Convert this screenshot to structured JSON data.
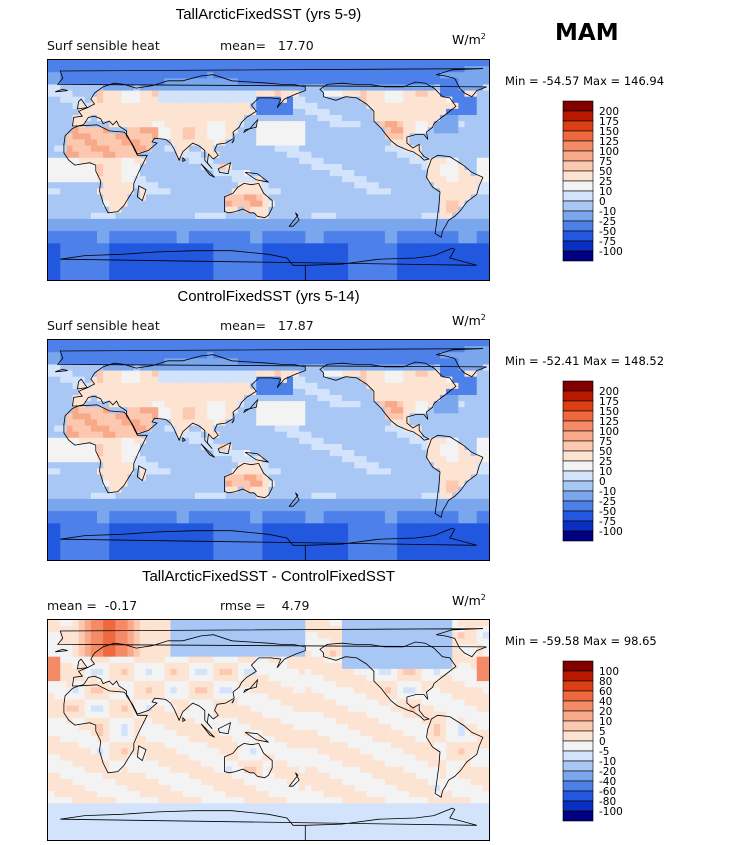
{
  "season": "MAM",
  "chart_data": [
    {
      "type": "heatmap",
      "title": "TallArcticFixedSST (yrs 5-9)",
      "variable": "Surf sensible heat",
      "stat_label": "mean=",
      "stat_value": "17.70",
      "units": "W/m",
      "units_exp": "2",
      "min_label": "Min =",
      "min_value": "-54.57",
      "max_label": "Max =",
      "max_value": "146.94",
      "colorbar_levels": [
        "200",
        "175",
        "150",
        "125",
        "100",
        "75",
        "50",
        "25",
        "10",
        "0",
        "-10",
        "-25",
        "-50",
        "-75",
        "-100"
      ],
      "colors": [
        "#800000",
        "#b81800",
        "#dd3f14",
        "#ee6a3e",
        "#f48a66",
        "#f8a98a",
        "#fcc9b0",
        "#fde3d2",
        "#f3f3f3",
        "#d2e3fb",
        "#a8c7f5",
        "#7aa6ee",
        "#4d80e8",
        "#2158df",
        "#0b2ec2",
        "#000080"
      ],
      "field": "base",
      "mean": 17.7
    },
    {
      "type": "heatmap",
      "title": "ControlFixedSST (yrs 5-14)",
      "variable": "Surf sensible heat",
      "stat_label": "mean=",
      "stat_value": "17.87",
      "units": "W/m",
      "units_exp": "2",
      "min_label": "Min =",
      "min_value": "-52.41",
      "max_label": "Max =",
      "max_value": "148.52",
      "colorbar_levels": [
        "200",
        "175",
        "150",
        "125",
        "100",
        "75",
        "50",
        "25",
        "10",
        "0",
        "-10",
        "-25",
        "-50",
        "-75",
        "-100"
      ],
      "colors": [
        "#800000",
        "#b81800",
        "#dd3f14",
        "#ee6a3e",
        "#f48a66",
        "#f8a98a",
        "#fcc9b0",
        "#fde3d2",
        "#f3f3f3",
        "#d2e3fb",
        "#a8c7f5",
        "#7aa6ee",
        "#4d80e8",
        "#2158df",
        "#0b2ec2",
        "#000080"
      ],
      "field": "base",
      "mean": 17.87
    },
    {
      "type": "heatmap",
      "title": "TallArcticFixedSST - ControlFixedSST",
      "variable": "",
      "stat_label": "mean =",
      "stat_value": "-0.17",
      "stat2_label": "rmse =",
      "stat2_value": "4.79",
      "units": "W/m",
      "units_exp": "2",
      "min_label": "Min =",
      "min_value": "-59.58",
      "max_label": "Max =",
      "max_value": "98.65",
      "colorbar_levels": [
        "100",
        "80",
        "60",
        "40",
        "20",
        "10",
        "5",
        "0",
        "-5",
        "-10",
        "-20",
        "-40",
        "-60",
        "-80",
        "-100"
      ],
      "colors": [
        "#800000",
        "#b81800",
        "#dd3f14",
        "#ee6a3e",
        "#f48a66",
        "#f8a98a",
        "#fcc9b0",
        "#fde3d2",
        "#f3f3f3",
        "#d2e3fb",
        "#a8c7f5",
        "#7aa6ee",
        "#4d80e8",
        "#2158df",
        "#0b2ec2",
        "#000080"
      ],
      "field": "diff",
      "mean": -0.17
    }
  ]
}
